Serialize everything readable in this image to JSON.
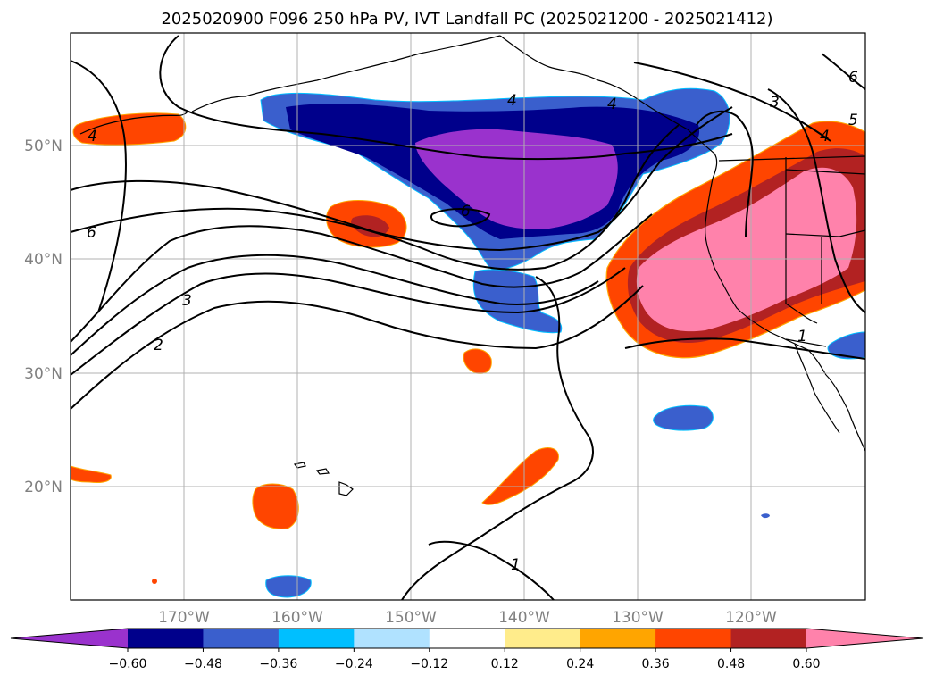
{
  "title": "2025020900 F096 250 hPa PV, IVT Landfall PC (2025021200 - 2025021412)",
  "map": {
    "lon_labels": [
      "170°W",
      "160°W",
      "150°W",
      "140°W",
      "130°W",
      "120°W"
    ],
    "lat_labels": [
      "50°N",
      "40°N",
      "30°N",
      "20°N"
    ],
    "gridlines": true
  },
  "contour_labels": [
    "4",
    "4",
    "3",
    "5",
    "4",
    "6",
    "6",
    "3",
    "2",
    "1",
    "1",
    "4",
    "6"
  ],
  "colorbar": {
    "levels": [
      "−0.60",
      "−0.48",
      "−0.36",
      "−0.24",
      "−0.12",
      "0.12",
      "0.24",
      "0.36",
      "0.48",
      "0.60"
    ],
    "colors": [
      "#9a32cd",
      "#00008b",
      "#3a5fcd",
      "#00bfff",
      "#b0e2ff",
      "#ffffff",
      "#ffec8b",
      "#ffa500",
      "#ff4500",
      "#b22222",
      "#ff82ab"
    ],
    "extend": "both"
  }
}
